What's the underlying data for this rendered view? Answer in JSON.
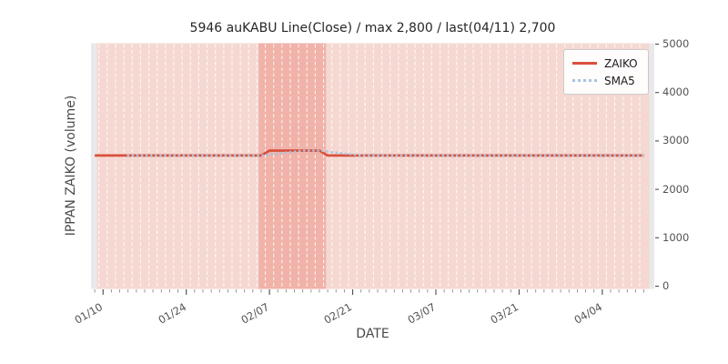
{
  "chart": {
    "legend": [
      {
        "label": "ZAIKO",
        "style": "solid",
        "color": "#d9503c"
      },
      {
        "label": "SMA5",
        "style": "dotted",
        "color": "#a6c4df"
      }
    ],
    "colors": {
      "figure_background": "#ffffff",
      "axes_background": "#e9e9ec",
      "day_band": "#f5d8d2",
      "highlight_band": "#f0b2a9",
      "gridline": "#ffffff",
      "zaiko_line": "#d9503c",
      "sma_line": "#a6c4df",
      "minor_tick": "#8c8c8c",
      "major_tick": "#4d4d4d",
      "tick_text": "#525252",
      "title_text": "#262626"
    }
  },
  "chart_data": {
    "type": "line",
    "title": "5946 auKABU Line(Close) / max 2,800 / last(04/11) 2,700",
    "xlabel": "DATE",
    "ylabel": "IPPAN ZAIKO (volume)",
    "ylim": [
      0,
      5000
    ],
    "y_ticks": [
      0,
      1000,
      2000,
      3000,
      4000,
      5000
    ],
    "x_major_ticks": [
      {
        "index": 1,
        "label": "01/10"
      },
      {
        "index": 11,
        "label": "01/24"
      },
      {
        "index": 21,
        "label": "02/07"
      },
      {
        "index": 31,
        "label": "02/21"
      },
      {
        "index": 41,
        "label": "03/07"
      },
      {
        "index": 51,
        "label": "03/21"
      },
      {
        "index": 61,
        "label": "04/04"
      }
    ],
    "n_points": 67,
    "max_value": 2800,
    "last_value": 2700,
    "last_date_label": "04/11",
    "highlight_band": {
      "start_index": 19.7,
      "end_index": 27.8
    },
    "legend_position": "upper right",
    "grid": "vertical-dashed-daily",
    "series": [
      {
        "name": "ZAIKO",
        "values": [
          2700,
          2700,
          2700,
          2700,
          2700,
          2700,
          2700,
          2700,
          2700,
          2700,
          2700,
          2700,
          2700,
          2700,
          2700,
          2700,
          2700,
          2700,
          2700,
          2700,
          2700,
          2800,
          2800,
          2800,
          2800,
          2800,
          2800,
          2800,
          2700,
          2700,
          2700,
          2700,
          2700,
          2700,
          2700,
          2700,
          2700,
          2700,
          2700,
          2700,
          2700,
          2700,
          2700,
          2700,
          2700,
          2700,
          2700,
          2700,
          2700,
          2700,
          2700,
          2700,
          2700,
          2700,
          2700,
          2700,
          2700,
          2700,
          2700,
          2700,
          2700,
          2700,
          2700,
          2700,
          2700,
          2700,
          2700
        ]
      },
      {
        "name": "SMA5",
        "values": [
          null,
          null,
          null,
          null,
          2700,
          2700,
          2700,
          2700,
          2700,
          2700,
          2700,
          2700,
          2700,
          2700,
          2700,
          2700,
          2700,
          2700,
          2700,
          2700,
          2700,
          2720,
          2740,
          2760,
          2780,
          2800,
          2800,
          2800,
          2780,
          2760,
          2740,
          2720,
          2700,
          2700,
          2700,
          2700,
          2700,
          2700,
          2700,
          2700,
          2700,
          2700,
          2700,
          2700,
          2700,
          2700,
          2700,
          2700,
          2700,
          2700,
          2700,
          2700,
          2700,
          2700,
          2700,
          2700,
          2700,
          2700,
          2700,
          2700,
          2700,
          2700,
          2700,
          2700,
          2700,
          2700,
          2700
        ]
      }
    ]
  }
}
